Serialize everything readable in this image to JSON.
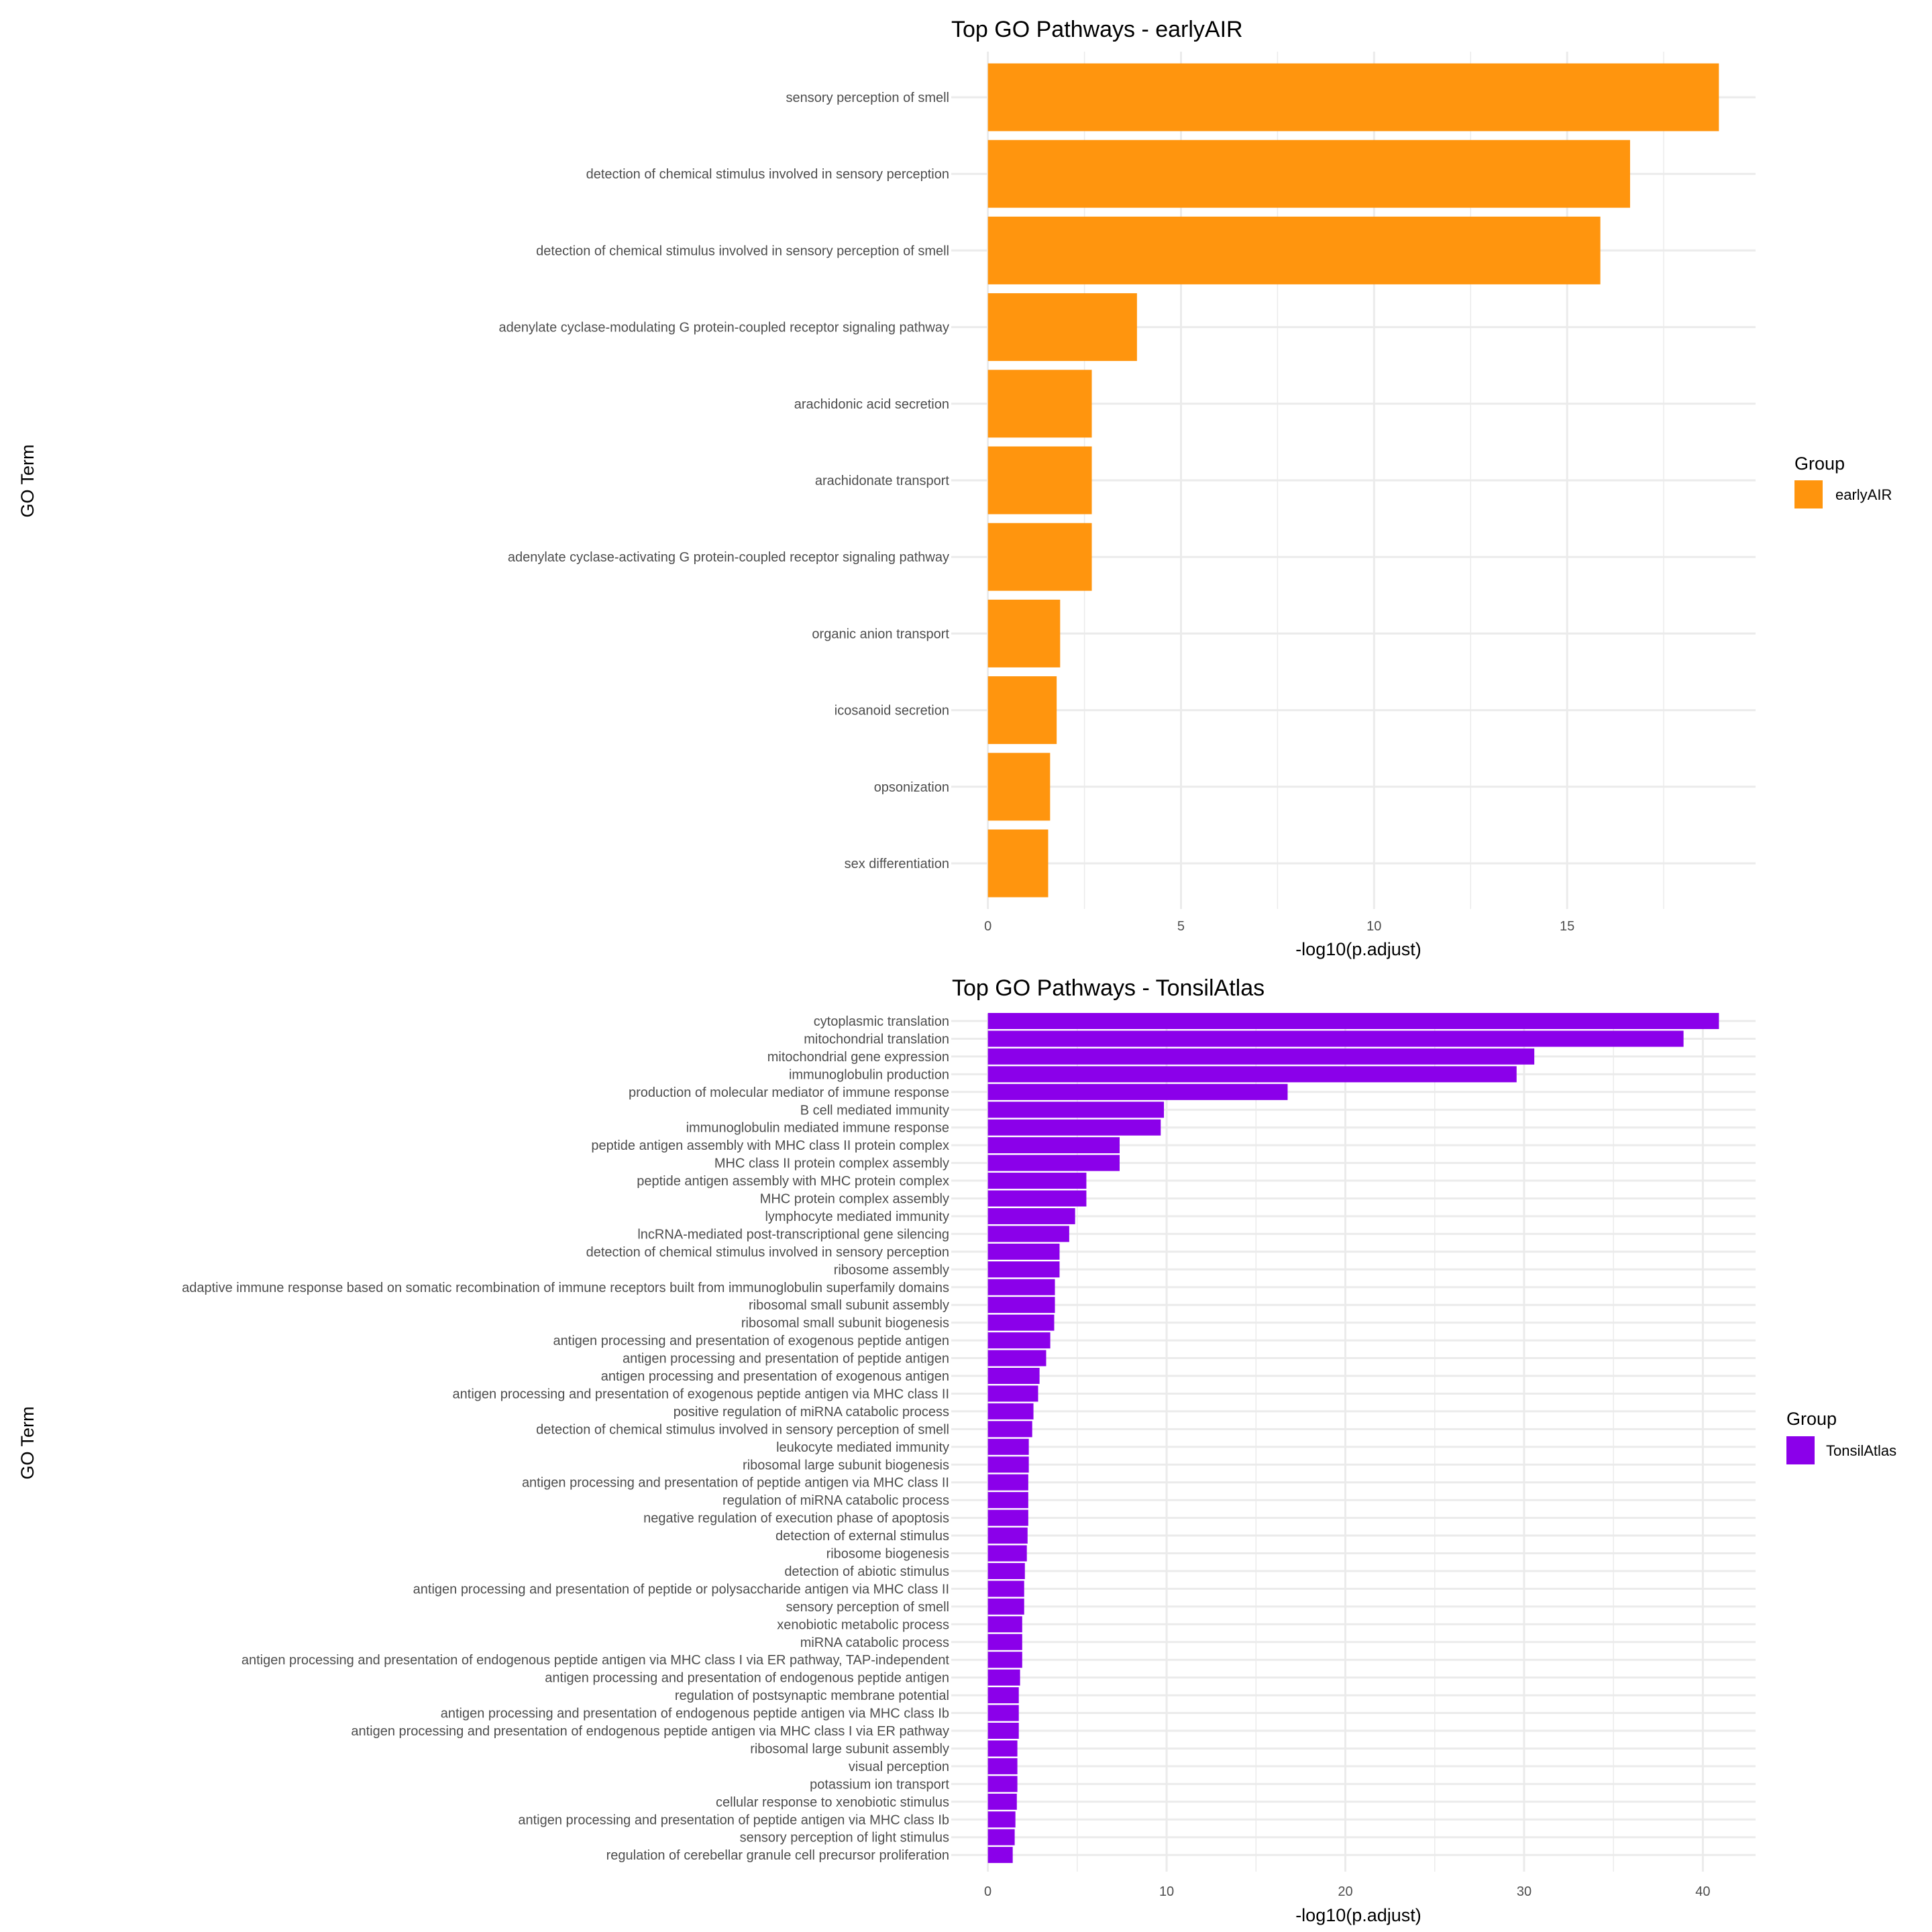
{
  "chart_data": [
    {
      "type": "bar",
      "orientation": "horizontal",
      "title": "Top GO Pathways - earlyAIR",
      "xlabel": "-log10(p.adjust)",
      "ylabel": "GO Term",
      "xlim": [
        -0.95,
        19.88
      ],
      "xticks": [
        0,
        5,
        10,
        15
      ],
      "xtick_labels": [
        "0",
        "5",
        "10",
        "15"
      ],
      "minor_xticks": [
        2.5,
        7.5,
        12.5,
        17.5
      ],
      "grid": true,
      "legend": {
        "title": "Group",
        "placement": "right",
        "entries": [
          {
            "label": "earlyAIR",
            "color": "#FF950E"
          }
        ]
      },
      "series": [
        {
          "name": "earlyAIR",
          "color": "#FF950E"
        }
      ],
      "categories": [
        "sensory perception of smell",
        "detection of chemical stimulus involved in sensory perception",
        "detection of chemical stimulus involved in sensory perception of smell",
        "adenylate cyclase-modulating G protein-coupled receptor signaling pathway",
        "arachidonic acid secretion",
        "arachidonate transport",
        "adenylate cyclase-activating G protein-coupled receptor signaling pathway",
        "organic anion transport",
        "icosanoid secretion",
        "opsonization",
        "sex differentiation"
      ],
      "values": [
        18.93,
        16.63,
        15.86,
        3.86,
        2.69,
        2.69,
        2.69,
        1.87,
        1.78,
        1.61,
        1.56
      ]
    },
    {
      "type": "bar",
      "orientation": "horizontal",
      "title": "Top GO Pathways - TonsilAtlas",
      "xlabel": "-log10(p.adjust)",
      "ylabel": "GO Term",
      "xlim": [
        -2.05,
        42.95
      ],
      "xticks": [
        0,
        10,
        20,
        30,
        40
      ],
      "xtick_labels": [
        "0",
        "10",
        "20",
        "30",
        "40"
      ],
      "minor_xticks": [
        5,
        15,
        25,
        35
      ],
      "grid": true,
      "legend": {
        "title": "Group",
        "placement": "right",
        "entries": [
          {
            "label": "TonsilAtlas",
            "color": "#8B00EA"
          }
        ]
      },
      "series": [
        {
          "name": "TonsilAtlas",
          "color": "#8B00EA"
        }
      ],
      "categories": [
        "cytoplasmic translation",
        "mitochondrial translation",
        "mitochondrial gene expression",
        "immunoglobulin production",
        "production of molecular mediator of immune response",
        "B cell mediated immunity",
        "immunoglobulin mediated immune response",
        "peptide antigen assembly with MHC class II protein complex",
        "MHC class II protein complex assembly",
        "peptide antigen assembly with MHC protein complex",
        "MHC protein complex assembly",
        "lymphocyte mediated immunity",
        "lncRNA-mediated post-transcriptional gene silencing",
        "detection of chemical stimulus involved in sensory perception",
        "ribosome assembly",
        "adaptive immune response based on somatic recombination of immune receptors built from immunoglobulin superfamily domains",
        "ribosomal small subunit assembly",
        "ribosomal small subunit biogenesis",
        "antigen processing and presentation of exogenous peptide antigen",
        "antigen processing and presentation of peptide antigen",
        "antigen processing and presentation of exogenous antigen",
        "antigen processing and presentation of exogenous peptide antigen via MHC class II",
        "positive regulation of miRNA catabolic process",
        "detection of chemical stimulus involved in sensory perception of smell",
        "leukocyte mediated immunity",
        "ribosomal large subunit biogenesis",
        "antigen processing and presentation of peptide antigen via MHC class II",
        "regulation of miRNA catabolic process",
        "negative regulation of execution phase of apoptosis",
        "detection of external stimulus",
        "ribosome biogenesis",
        "detection of abiotic stimulus",
        "antigen processing and presentation of peptide or polysaccharide antigen via MHC class II",
        "sensory perception of smell",
        "xenobiotic metabolic process",
        "miRNA catabolic process",
        "antigen processing and presentation of endogenous peptide antigen via MHC class I via ER pathway, TAP-independent",
        "antigen processing and presentation of endogenous peptide antigen",
        "regulation of postsynaptic membrane potential",
        "antigen processing and presentation of endogenous peptide antigen via MHC class Ib",
        "antigen processing and presentation of endogenous peptide antigen via MHC class I via ER pathway",
        "ribosomal large subunit assembly",
        "visual perception",
        "potassium ion transport",
        "cellular response to xenobiotic stimulus",
        "antigen processing and presentation of peptide antigen via MHC class Ib",
        "sensory perception of light stimulus",
        "regulation of cerebellar granule cell precursor proliferation"
      ],
      "values": [
        40.9,
        38.92,
        30.57,
        29.58,
        16.77,
        9.85,
        9.67,
        7.37,
        7.37,
        5.51,
        5.51,
        4.88,
        4.55,
        4.01,
        4.01,
        3.75,
        3.75,
        3.71,
        3.49,
        3.26,
        2.89,
        2.81,
        2.55,
        2.48,
        2.29,
        2.29,
        2.26,
        2.26,
        2.26,
        2.22,
        2.18,
        2.07,
        2.03,
        2.03,
        1.92,
        1.92,
        1.92,
        1.8,
        1.73,
        1.73,
        1.73,
        1.65,
        1.65,
        1.65,
        1.62,
        1.54,
        1.5,
        1.39
      ]
    }
  ]
}
